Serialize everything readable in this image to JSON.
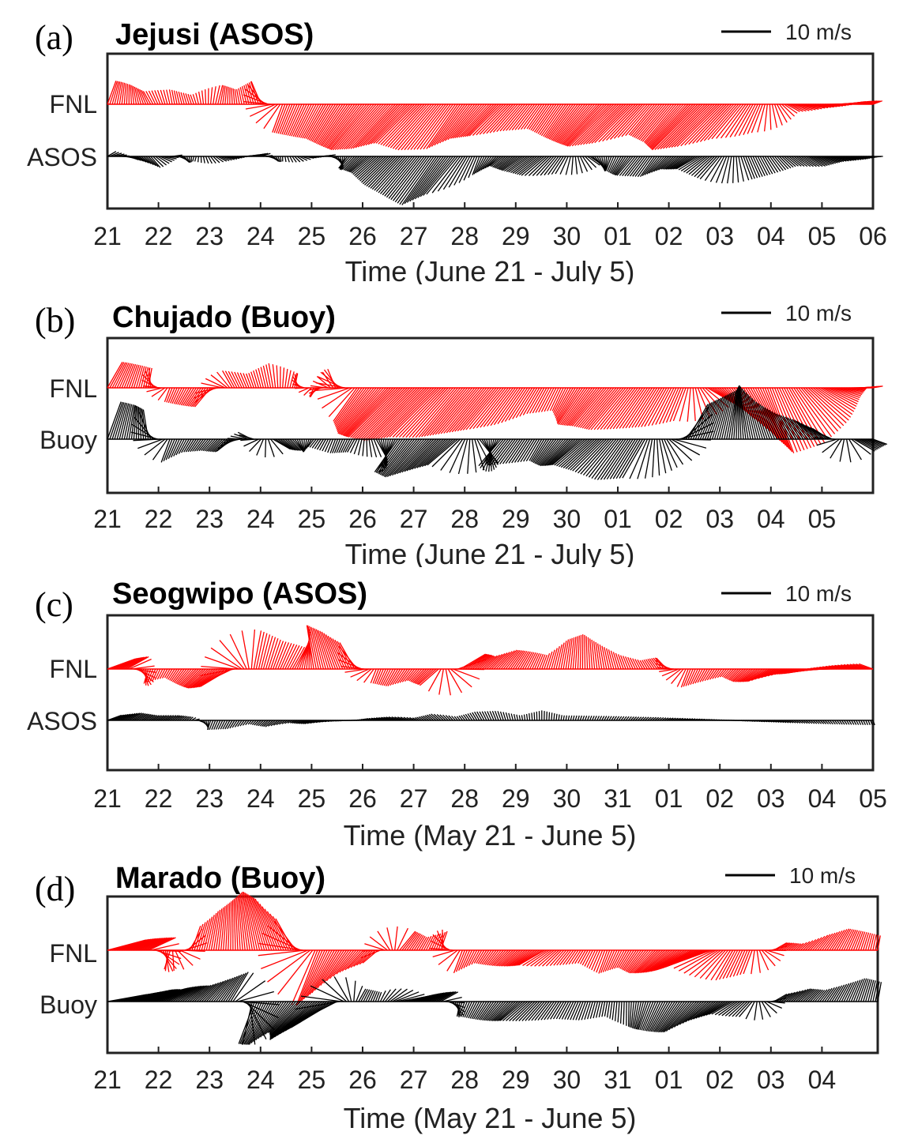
{
  "chart_data": [
    {
      "type": "stick-vector",
      "panel_label": "(a)",
      "title": "Jejusi (ASOS)",
      "scale_label": "10 m/s",
      "xlabel": "Time (June 21 - July 5)",
      "tick_labels": [
        "21",
        "22",
        "23",
        "24",
        "25",
        "26",
        "27",
        "28",
        "29",
        "30",
        "01",
        "02",
        "03",
        "04",
        "05",
        "06"
      ],
      "series": [
        {
          "name": "FNL",
          "color": "#ff0000",
          "speed": [
            5,
            4,
            3,
            3,
            2,
            4,
            3,
            5,
            6,
            7,
            8,
            10,
            12,
            12,
            11,
            12,
            11,
            9,
            9,
            7,
            6,
            8,
            10,
            12,
            11,
            8,
            10,
            13,
            12,
            9,
            6,
            3,
            4,
            5,
            3,
            2
          ],
          "dir_deg": [
            20,
            0,
            330,
            350,
            340,
            15,
            350,
            340,
            200,
            205,
            210,
            215,
            220,
            222,
            225,
            220,
            215,
            220,
            225,
            220,
            215,
            215,
            220,
            225,
            225,
            220,
            220,
            225,
            225,
            220,
            200,
            120,
            100,
            90,
            80,
            70
          ]
        },
        {
          "name": "ASOS",
          "color": "#000000",
          "speed": [
            2,
            2,
            3,
            2,
            1,
            2,
            2,
            2,
            1,
            2,
            2,
            3,
            5,
            8,
            10,
            12,
            10,
            4,
            3,
            5,
            6,
            4,
            3,
            3,
            5,
            5,
            4,
            5,
            6,
            5,
            4,
            3,
            4,
            3,
            3,
            2
          ],
          "dir_deg": [
            60,
            110,
            140,
            80,
            200,
            120,
            90,
            70,
            180,
            100,
            80,
            220,
            230,
            225,
            220,
            215,
            220,
            200,
            230,
            235,
            230,
            210,
            120,
            200,
            220,
            215,
            230,
            240,
            220,
            160,
            150,
            130,
            120,
            110,
            100,
            90
          ]
        }
      ]
    },
    {
      "type": "stick-vector",
      "panel_label": "(b)",
      "title": "Chujado (Buoy)",
      "scale_label": "10 m/s",
      "xlabel": "Time (June 21 - July 5)",
      "tick_labels": [
        "21",
        "22",
        "23",
        "24",
        "25",
        "26",
        "27",
        "28",
        "29",
        "30",
        "01",
        "02",
        "03",
        "04",
        "05"
      ],
      "series": [
        {
          "name": "FNL",
          "color": "#ff0000",
          "speed": [
            6,
            5,
            4,
            3,
            4,
            5,
            4,
            3,
            5,
            3,
            2,
            4,
            8,
            12,
            14,
            15,
            14,
            13,
            12,
            11,
            9,
            6,
            5,
            9,
            10,
            11,
            10,
            9,
            7,
            6,
            8,
            12,
            14,
            13,
            10,
            6,
            3,
            2
          ],
          "dir_deg": [
            30,
            20,
            10,
            200,
            210,
            220,
            330,
            340,
            350,
            20,
            200,
            340,
            215,
            220,
            225,
            225,
            225,
            220,
            220,
            220,
            215,
            210,
            205,
            215,
            220,
            220,
            215,
            210,
            200,
            120,
            140,
            150,
            160,
            150,
            130,
            110,
            90,
            80
          ]
        },
        {
          "name": "Buoy",
          "color": "#000000",
          "speed": [
            8,
            7,
            6,
            5,
            3,
            3,
            4,
            3,
            4,
            3,
            2,
            3,
            3,
            4,
            8,
            10,
            9,
            8,
            6,
            7,
            6,
            5,
            7,
            8,
            9,
            10,
            9,
            6,
            8,
            9,
            10,
            11,
            8,
            6,
            5,
            4,
            5,
            3
          ],
          "dir_deg": [
            20,
            10,
            350,
            200,
            210,
            220,
            230,
            300,
            120,
            140,
            220,
            200,
            210,
            150,
            215,
            220,
            225,
            230,
            140,
            220,
            215,
            210,
            220,
            230,
            225,
            215,
            210,
            150,
            30,
            20,
            10,
            350,
            340,
            330,
            320,
            300,
            120,
            110
          ]
        }
      ]
    },
    {
      "type": "stick-vector",
      "panel_label": "(c)",
      "title": "Seogwipo (ASOS)",
      "scale_label": "10 m/s",
      "xlabel": "Time (May 21 - June 5)",
      "tick_labels": [
        "21",
        "22",
        "23",
        "24",
        "25",
        "26",
        "27",
        "28",
        "29",
        "30",
        "31",
        "01",
        "02",
        "03",
        "04",
        "05"
      ],
      "series": [
        {
          "name": "FNL",
          "color": "#ff0000",
          "speed": [
            6,
            5,
            3,
            2,
            4,
            6,
            7,
            8,
            6,
            5,
            9,
            8,
            6,
            3,
            4,
            3,
            5,
            6,
            4,
            5,
            4,
            3,
            6,
            7,
            5,
            3,
            2,
            3,
            4,
            3,
            2,
            4,
            5,
            3,
            4,
            5,
            4,
            3
          ],
          "dir_deg": [
            70,
            60,
            200,
            210,
            220,
            230,
            240,
            10,
            20,
            30,
            350,
            340,
            330,
            200,
            210,
            220,
            230,
            60,
            50,
            40,
            30,
            20,
            10,
            0,
            350,
            340,
            330,
            320,
            200,
            210,
            220,
            230,
            240,
            250,
            260,
            270,
            280,
            290
          ]
        },
        {
          "name": "ASOS",
          "color": "#000000",
          "speed": [
            3,
            3,
            2,
            2,
            1,
            2,
            2,
            1,
            2,
            1,
            2,
            1,
            1,
            2,
            2,
            1,
            2,
            1,
            2,
            2,
            1,
            2,
            1,
            1,
            1,
            1,
            1,
            1,
            1,
            1,
            1,
            1,
            1,
            1,
            1,
            1,
            1,
            1
          ],
          "dir_deg": [
            70,
            60,
            60,
            60,
            50,
            200,
            210,
            220,
            230,
            240,
            250,
            260,
            270,
            280,
            290,
            300,
            310,
            320,
            330,
            340,
            350,
            0,
            10,
            20,
            30,
            40,
            50,
            60,
            70,
            80,
            90,
            100,
            110,
            120,
            130,
            140,
            150,
            160
          ]
        }
      ]
    },
    {
      "type": "stick-vector",
      "panel_label": "(d)",
      "title": "Marado (Buoy)",
      "scale_label": "10 m/s",
      "xlabel": "Time (May 21 - June 5)",
      "tick_labels": [
        "21",
        "22",
        "23",
        "24",
        "25",
        "26",
        "27",
        "28",
        "29",
        "30",
        "31",
        "01",
        "02",
        "03",
        "04"
      ],
      "series": [
        {
          "name": "FNL",
          "color": "#ff0000",
          "speed": [
            8,
            7,
            6,
            4,
            5,
            8,
            10,
            12,
            11,
            7,
            12,
            10,
            6,
            4,
            5,
            3,
            4,
            5,
            3,
            4,
            5,
            6,
            4,
            3,
            5,
            4,
            6,
            7,
            8,
            9,
            7,
            5,
            3,
            2,
            4,
            5,
            4,
            3
          ],
          "dir_deg": [
            75,
            70,
            65,
            200,
            20,
            10,
            0,
            350,
            340,
            330,
            200,
            210,
            220,
            230,
            40,
            30,
            20,
            200,
            210,
            220,
            230,
            240,
            220,
            210,
            200,
            210,
            220,
            230,
            240,
            250,
            210,
            200,
            60,
            50,
            40,
            30,
            20,
            10
          ]
        },
        {
          "name": "Buoy",
          "color": "#000000",
          "speed": [
            8,
            9,
            7,
            6,
            5,
            6,
            7,
            9,
            10,
            8,
            12,
            10,
            3,
            2,
            6,
            5,
            4,
            3,
            4,
            5,
            6,
            5,
            4,
            4,
            3,
            5,
            6,
            7,
            8,
            6,
            5,
            4,
            3,
            4,
            3,
            4,
            5,
            4
          ],
          "dir_deg": [
            80,
            75,
            70,
            60,
            50,
            40,
            30,
            200,
            210,
            220,
            230,
            240,
            30,
            20,
            80,
            70,
            60,
            200,
            210,
            220,
            230,
            220,
            210,
            200,
            190,
            180,
            200,
            210,
            220,
            230,
            240,
            220,
            60,
            50,
            40,
            30,
            20,
            10
          ]
        }
      ]
    }
  ]
}
